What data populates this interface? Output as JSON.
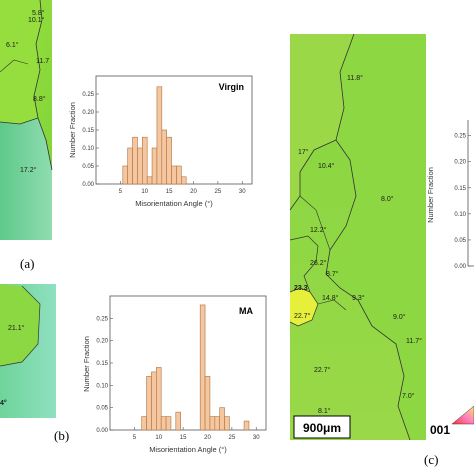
{
  "panels": {
    "a": {
      "label": "(a)",
      "angles": [
        "5.8°",
        "10.1°",
        "6.1°",
        "11.7",
        "8.8°",
        "17.2°"
      ]
    },
    "b": {
      "label": "(b)",
      "angles": [
        "21.1°",
        "4°"
      ]
    },
    "c": {
      "label": "(c)",
      "angles": [
        "11.8°",
        "17°",
        "10.4°",
        "8.0°",
        "12.2°",
        "26.2°",
        "8.7°",
        "23.3",
        "14.8°",
        "9.3°",
        "22.7°",
        "9.0°",
        "11.7°",
        "22.7°",
        "7.0°",
        "8.1°"
      ],
      "scale_bar": "900μm",
      "triangle_label": "001"
    }
  },
  "colors": {
    "grain_green": "#8fdb3c",
    "bar_fill": "#f5c7a0",
    "bar_stroke": "#b0713f"
  },
  "chart_data": [
    {
      "type": "bar",
      "title": "Virgin",
      "xlabel": "Misorientation Angle (°)",
      "ylabel": "Number Fraction",
      "xlim": [
        0,
        32
      ],
      "ylim": [
        0,
        0.3
      ],
      "xticks": [
        "5",
        "10",
        "15",
        "20",
        "25",
        "30"
      ],
      "yticks": [
        "0.00",
        "0.05",
        "0.10",
        "0.15",
        "0.20",
        "0.25"
      ],
      "x": [
        6,
        7,
        8,
        9,
        10,
        11,
        12,
        13,
        14,
        15,
        16,
        17,
        18
      ],
      "values": [
        0.05,
        0.1,
        0.13,
        0.1,
        0.13,
        0.02,
        0.1,
        0.27,
        0.15,
        0.13,
        0.05,
        0.05,
        0.02
      ]
    },
    {
      "type": "bar",
      "title": "MA",
      "xlabel": "Misorientation Angle (°)",
      "ylabel": "Number Fraction",
      "xlim": [
        0,
        32
      ],
      "ylim": [
        0,
        0.3
      ],
      "xticks": [
        "5",
        "10",
        "15",
        "20",
        "25",
        "30"
      ],
      "yticks": [
        "0.00",
        "0.05",
        "0.10",
        "0.15",
        "0.20",
        "0.25"
      ],
      "x": [
        7,
        8,
        9,
        10,
        11,
        12,
        14,
        19,
        20,
        21,
        22,
        23,
        24,
        28
      ],
      "values": [
        0.03,
        0.12,
        0.13,
        0.14,
        0.03,
        0.03,
        0.04,
        0.28,
        0.12,
        0.03,
        0.03,
        0.05,
        0.03,
        0.02
      ]
    },
    {
      "type": "bar",
      "title": "",
      "xlabel": "",
      "ylabel": "Number Fraction",
      "ylim": [
        0,
        0.28
      ],
      "yticks": [
        "0.00",
        "0.05",
        "0.10",
        "0.15",
        "0.20",
        "0.25"
      ],
      "x": [],
      "values": []
    }
  ]
}
